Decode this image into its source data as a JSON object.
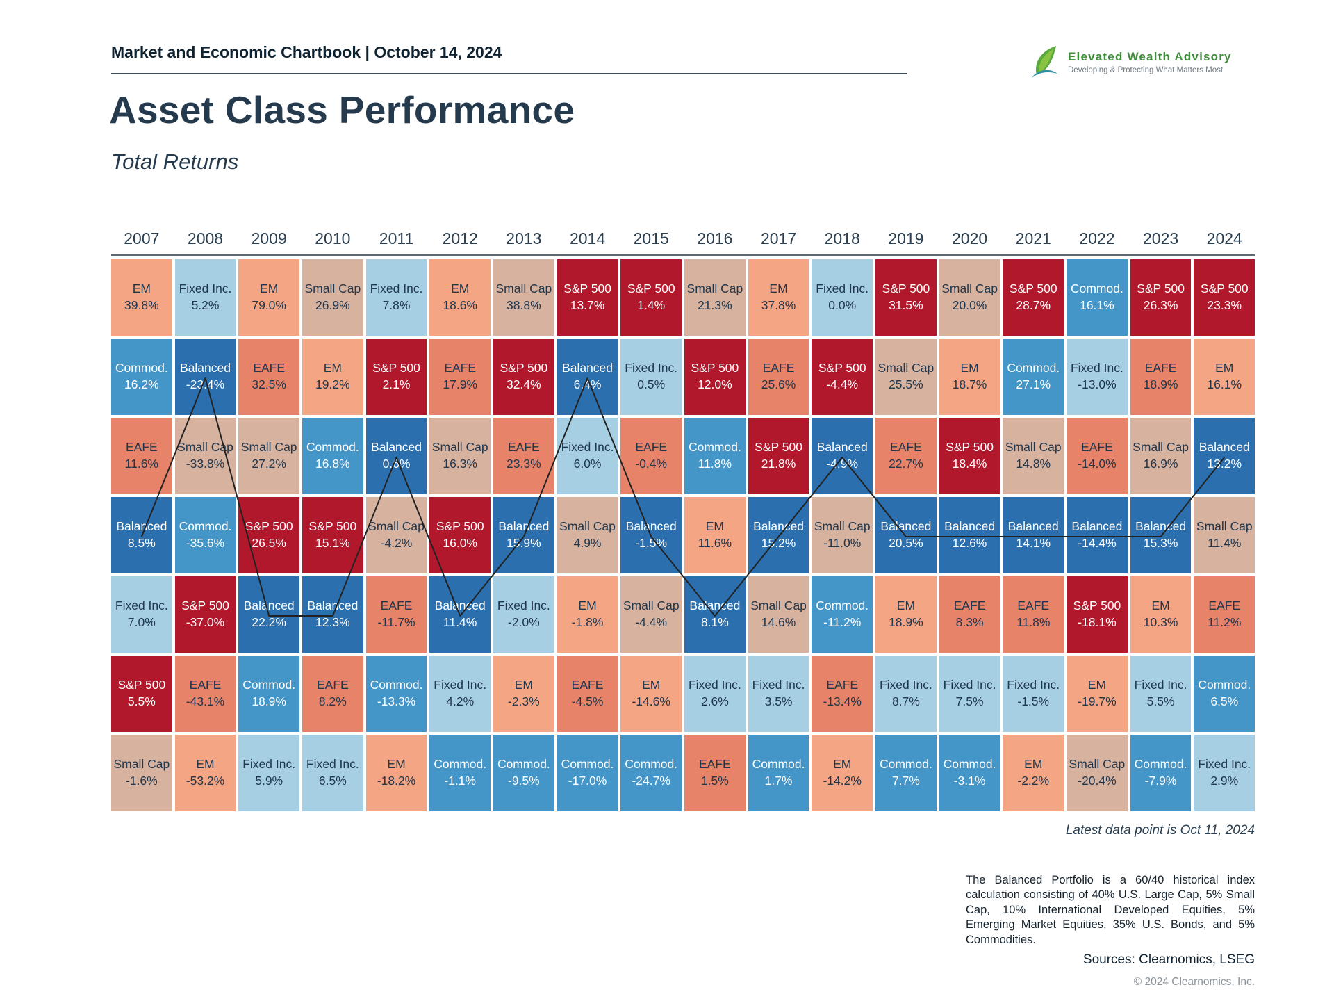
{
  "page": {
    "header_title": "Market and Economic Chartbook | October 14, 2024",
    "brand": {
      "name": "Elevated Wealth Advisory",
      "tagline": "Developing & Protecting What Matters Most"
    },
    "title": "Asset Class Performance",
    "subtitle": "Total Returns",
    "latest_note": "Latest data point is Oct 11, 2024",
    "footnote": "The Balanced Portfolio is a 60/40 historical index calculation consisting of 40% U.S. Large Cap, 5% Small Cap, 10% International Developed Equities, 5% Emerging Market Equities, 35% U.S. Bonds, and 5% Commodities.",
    "sources": "Sources: Clearnomics, LSEG",
    "copyright": "© 2024 Clearnomics, Inc."
  },
  "asset_styles": {
    "S&P 500": {
      "bg": "#B2182B",
      "fg": "#FFFFFF"
    },
    "EM": {
      "bg": "#F4A583",
      "fg": "#20374E"
    },
    "EAFE": {
      "bg": "#E68368",
      "fg": "#20374E"
    },
    "Small Cap": {
      "bg": "#D6B29F",
      "fg": "#20374E"
    },
    "Fixed Inc.": {
      "bg": "#A7CFE4",
      "fg": "#20374E"
    },
    "Commod.": {
      "bg": "#4495C8",
      "fg": "#FFFFFF"
    },
    "Balanced": {
      "bg": "#2B6FAE",
      "fg": "#FFFFFF"
    }
  },
  "chart_data": {
    "type": "table",
    "title": "Asset Class Performance — Total Returns",
    "years": [
      "2007",
      "2008",
      "2009",
      "2010",
      "2011",
      "2012",
      "2013",
      "2014",
      "2015",
      "2016",
      "2017",
      "2018",
      "2019",
      "2020",
      "2021",
      "2022",
      "2023",
      "2024"
    ],
    "line_overlay": {
      "series": "Balanced",
      "color": "#222222"
    },
    "columns": [
      {
        "year": "2007",
        "cells": [
          [
            "EM",
            "39.8%"
          ],
          [
            "Commod.",
            "16.2%"
          ],
          [
            "EAFE",
            "11.6%"
          ],
          [
            "Balanced",
            "8.5%"
          ],
          [
            "Fixed Inc.",
            "7.0%"
          ],
          [
            "S&P 500",
            "5.5%"
          ],
          [
            "Small Cap",
            "-1.6%"
          ]
        ]
      },
      {
        "year": "2008",
        "cells": [
          [
            "Fixed Inc.",
            "5.2%"
          ],
          [
            "Balanced",
            "-23.4%"
          ],
          [
            "Small Cap",
            "-33.8%"
          ],
          [
            "Commod.",
            "-35.6%"
          ],
          [
            "S&P 500",
            "-37.0%"
          ],
          [
            "EAFE",
            "-43.1%"
          ],
          [
            "EM",
            "-53.2%"
          ]
        ]
      },
      {
        "year": "2009",
        "cells": [
          [
            "EM",
            "79.0%"
          ],
          [
            "EAFE",
            "32.5%"
          ],
          [
            "Small Cap",
            "27.2%"
          ],
          [
            "S&P 500",
            "26.5%"
          ],
          [
            "Balanced",
            "22.2%"
          ],
          [
            "Commod.",
            "18.9%"
          ],
          [
            "Fixed Inc.",
            "5.9%"
          ]
        ]
      },
      {
        "year": "2010",
        "cells": [
          [
            "Small Cap",
            "26.9%"
          ],
          [
            "EM",
            "19.2%"
          ],
          [
            "Commod.",
            "16.8%"
          ],
          [
            "S&P 500",
            "15.1%"
          ],
          [
            "Balanced",
            "12.3%"
          ],
          [
            "EAFE",
            "8.2%"
          ],
          [
            "Fixed Inc.",
            "6.5%"
          ]
        ]
      },
      {
        "year": "2011",
        "cells": [
          [
            "Fixed Inc.",
            "7.8%"
          ],
          [
            "S&P 500",
            "2.1%"
          ],
          [
            "Balanced",
            "0.6%"
          ],
          [
            "Small Cap",
            "-4.2%"
          ],
          [
            "EAFE",
            "-11.7%"
          ],
          [
            "Commod.",
            "-13.3%"
          ],
          [
            "EM",
            "-18.2%"
          ]
        ]
      },
      {
        "year": "2012",
        "cells": [
          [
            "EM",
            "18.6%"
          ],
          [
            "EAFE",
            "17.9%"
          ],
          [
            "Small Cap",
            "16.3%"
          ],
          [
            "S&P 500",
            "16.0%"
          ],
          [
            "Balanced",
            "11.4%"
          ],
          [
            "Fixed Inc.",
            "4.2%"
          ],
          [
            "Commod.",
            "-1.1%"
          ]
        ]
      },
      {
        "year": "2013",
        "cells": [
          [
            "Small Cap",
            "38.8%"
          ],
          [
            "S&P 500",
            "32.4%"
          ],
          [
            "EAFE",
            "23.3%"
          ],
          [
            "Balanced",
            "15.9%"
          ],
          [
            "Fixed Inc.",
            "-2.0%"
          ],
          [
            "EM",
            "-2.3%"
          ],
          [
            "Commod.",
            "-9.5%"
          ]
        ]
      },
      {
        "year": "2014",
        "cells": [
          [
            "S&P 500",
            "13.7%"
          ],
          [
            "Balanced",
            "6.4%"
          ],
          [
            "Fixed Inc.",
            "6.0%"
          ],
          [
            "Small Cap",
            "4.9%"
          ],
          [
            "EM",
            "-1.8%"
          ],
          [
            "EAFE",
            "-4.5%"
          ],
          [
            "Commod.",
            "-17.0%"
          ]
        ]
      },
      {
        "year": "2015",
        "cells": [
          [
            "S&P 500",
            "1.4%"
          ],
          [
            "Fixed Inc.",
            "0.5%"
          ],
          [
            "EAFE",
            "-0.4%"
          ],
          [
            "Balanced",
            "-1.5%"
          ],
          [
            "Small Cap",
            "-4.4%"
          ],
          [
            "EM",
            "-14.6%"
          ],
          [
            "Commod.",
            "-24.7%"
          ]
        ]
      },
      {
        "year": "2016",
        "cells": [
          [
            "Small Cap",
            "21.3%"
          ],
          [
            "S&P 500",
            "12.0%"
          ],
          [
            "Commod.",
            "11.8%"
          ],
          [
            "EM",
            "11.6%"
          ],
          [
            "Balanced",
            "8.1%"
          ],
          [
            "Fixed Inc.",
            "2.6%"
          ],
          [
            "EAFE",
            "1.5%"
          ]
        ]
      },
      {
        "year": "2017",
        "cells": [
          [
            "EM",
            "37.8%"
          ],
          [
            "EAFE",
            "25.6%"
          ],
          [
            "S&P 500",
            "21.8%"
          ],
          [
            "Balanced",
            "15.2%"
          ],
          [
            "Small Cap",
            "14.6%"
          ],
          [
            "Fixed Inc.",
            "3.5%"
          ],
          [
            "Commod.",
            "1.7%"
          ]
        ]
      },
      {
        "year": "2018",
        "cells": [
          [
            "Fixed Inc.",
            "0.0%"
          ],
          [
            "S&P 500",
            "-4.4%"
          ],
          [
            "Balanced",
            "-4.9%"
          ],
          [
            "Small Cap",
            "-11.0%"
          ],
          [
            "Commod.",
            "-11.2%"
          ],
          [
            "EAFE",
            "-13.4%"
          ],
          [
            "EM",
            "-14.2%"
          ]
        ]
      },
      {
        "year": "2019",
        "cells": [
          [
            "S&P 500",
            "31.5%"
          ],
          [
            "Small Cap",
            "25.5%"
          ],
          [
            "EAFE",
            "22.7%"
          ],
          [
            "Balanced",
            "20.5%"
          ],
          [
            "EM",
            "18.9%"
          ],
          [
            "Fixed Inc.",
            "8.7%"
          ],
          [
            "Commod.",
            "7.7%"
          ]
        ]
      },
      {
        "year": "2020",
        "cells": [
          [
            "Small Cap",
            "20.0%"
          ],
          [
            "EM",
            "18.7%"
          ],
          [
            "S&P 500",
            "18.4%"
          ],
          [
            "Balanced",
            "12.6%"
          ],
          [
            "EAFE",
            "8.3%"
          ],
          [
            "Fixed Inc.",
            "7.5%"
          ],
          [
            "Commod.",
            "-3.1%"
          ]
        ]
      },
      {
        "year": "2021",
        "cells": [
          [
            "S&P 500",
            "28.7%"
          ],
          [
            "Commod.",
            "27.1%"
          ],
          [
            "Small Cap",
            "14.8%"
          ],
          [
            "Balanced",
            "14.1%"
          ],
          [
            "EAFE",
            "11.8%"
          ],
          [
            "Fixed Inc.",
            "-1.5%"
          ],
          [
            "EM",
            "-2.2%"
          ]
        ]
      },
      {
        "year": "2022",
        "cells": [
          [
            "Commod.",
            "16.1%"
          ],
          [
            "Fixed Inc.",
            "-13.0%"
          ],
          [
            "EAFE",
            "-14.0%"
          ],
          [
            "Balanced",
            "-14.4%"
          ],
          [
            "S&P 500",
            "-18.1%"
          ],
          [
            "EM",
            "-19.7%"
          ],
          [
            "Small Cap",
            "-20.4%"
          ]
        ]
      },
      {
        "year": "2023",
        "cells": [
          [
            "S&P 500",
            "26.3%"
          ],
          [
            "EAFE",
            "18.9%"
          ],
          [
            "Small Cap",
            "16.9%"
          ],
          [
            "Balanced",
            "15.3%"
          ],
          [
            "EM",
            "10.3%"
          ],
          [
            "Fixed Inc.",
            "5.5%"
          ],
          [
            "Commod.",
            "-7.9%"
          ]
        ]
      },
      {
        "year": "2024",
        "cells": [
          [
            "S&P 500",
            "23.3%"
          ],
          [
            "EM",
            "16.1%"
          ],
          [
            "Balanced",
            "13.2%"
          ],
          [
            "Small Cap",
            "11.4%"
          ],
          [
            "EAFE",
            "11.2%"
          ],
          [
            "Commod.",
            "6.5%"
          ],
          [
            "Fixed Inc.",
            "2.9%"
          ]
        ]
      }
    ]
  }
}
